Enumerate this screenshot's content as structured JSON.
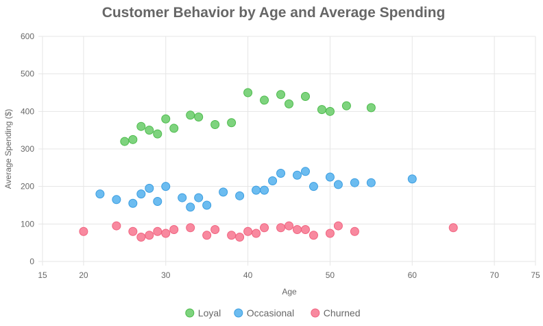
{
  "chart_data": {
    "type": "scatter",
    "title": "Customer Behavior by Age and Average Spending",
    "xlabel": "Age",
    "ylabel": "Average Spending ($)",
    "xlim": [
      15,
      75
    ],
    "ylim": [
      0,
      600
    ],
    "xticks": [
      15,
      20,
      30,
      40,
      50,
      60,
      70,
      75
    ],
    "yticks": [
      0,
      100,
      200,
      300,
      400,
      500,
      600
    ],
    "grid": true,
    "legend_position": "bottom",
    "series": [
      {
        "name": "Loyal",
        "color": "#4cbb4c",
        "fill": "#7ed37e",
        "points": [
          {
            "x": 25,
            "y": 320
          },
          {
            "x": 26,
            "y": 325
          },
          {
            "x": 27,
            "y": 360
          },
          {
            "x": 28,
            "y": 350
          },
          {
            "x": 29,
            "y": 340
          },
          {
            "x": 30,
            "y": 380
          },
          {
            "x": 31,
            "y": 355
          },
          {
            "x": 33,
            "y": 390
          },
          {
            "x": 34,
            "y": 385
          },
          {
            "x": 36,
            "y": 365
          },
          {
            "x": 38,
            "y": 370
          },
          {
            "x": 40,
            "y": 450
          },
          {
            "x": 42,
            "y": 430
          },
          {
            "x": 44,
            "y": 445
          },
          {
            "x": 45,
            "y": 420
          },
          {
            "x": 47,
            "y": 440
          },
          {
            "x": 49,
            "y": 405
          },
          {
            "x": 50,
            "y": 400
          },
          {
            "x": 52,
            "y": 415
          },
          {
            "x": 55,
            "y": 410
          }
        ]
      },
      {
        "name": "Occasional",
        "color": "#3a9de0",
        "fill": "#6cbcf0",
        "points": [
          {
            "x": 22,
            "y": 180
          },
          {
            "x": 24,
            "y": 165
          },
          {
            "x": 26,
            "y": 155
          },
          {
            "x": 27,
            "y": 180
          },
          {
            "x": 28,
            "y": 195
          },
          {
            "x": 29,
            "y": 160
          },
          {
            "x": 30,
            "y": 200
          },
          {
            "x": 32,
            "y": 170
          },
          {
            "x": 33,
            "y": 145
          },
          {
            "x": 34,
            "y": 170
          },
          {
            "x": 35,
            "y": 150
          },
          {
            "x": 37,
            "y": 185
          },
          {
            "x": 39,
            "y": 175
          },
          {
            "x": 41,
            "y": 190
          },
          {
            "x": 42,
            "y": 190
          },
          {
            "x": 43,
            "y": 215
          },
          {
            "x": 44,
            "y": 235
          },
          {
            "x": 46,
            "y": 230
          },
          {
            "x": 47,
            "y": 240
          },
          {
            "x": 48,
            "y": 200
          },
          {
            "x": 50,
            "y": 225
          },
          {
            "x": 51,
            "y": 205
          },
          {
            "x": 53,
            "y": 210
          },
          {
            "x": 55,
            "y": 210
          },
          {
            "x": 60,
            "y": 220
          }
        ]
      },
      {
        "name": "Churned",
        "color": "#f0627f",
        "fill": "#f8899f",
        "points": [
          {
            "x": 20,
            "y": 80
          },
          {
            "x": 24,
            "y": 95
          },
          {
            "x": 26,
            "y": 80
          },
          {
            "x": 27,
            "y": 65
          },
          {
            "x": 28,
            "y": 70
          },
          {
            "x": 29,
            "y": 80
          },
          {
            "x": 30,
            "y": 75
          },
          {
            "x": 31,
            "y": 85
          },
          {
            "x": 33,
            "y": 90
          },
          {
            "x": 35,
            "y": 70
          },
          {
            "x": 36,
            "y": 85
          },
          {
            "x": 38,
            "y": 70
          },
          {
            "x": 39,
            "y": 65
          },
          {
            "x": 40,
            "y": 80
          },
          {
            "x": 41,
            "y": 75
          },
          {
            "x": 42,
            "y": 90
          },
          {
            "x": 44,
            "y": 90
          },
          {
            "x": 45,
            "y": 95
          },
          {
            "x": 46,
            "y": 85
          },
          {
            "x": 47,
            "y": 85
          },
          {
            "x": 48,
            "y": 70
          },
          {
            "x": 50,
            "y": 75
          },
          {
            "x": 51,
            "y": 95
          },
          {
            "x": 53,
            "y": 80
          },
          {
            "x": 65,
            "y": 90
          }
        ]
      }
    ]
  }
}
